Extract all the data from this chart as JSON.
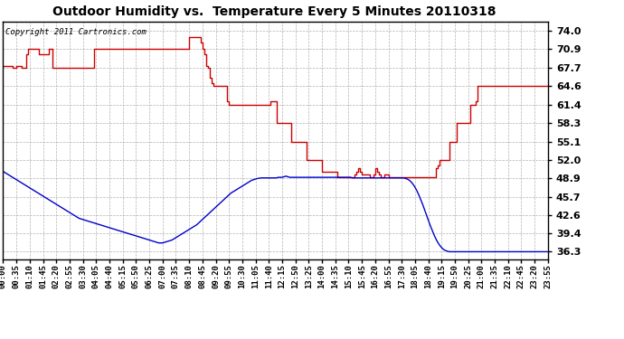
{
  "title": "Outdoor Humidity vs.  Temperature Every 5 Minutes 20110318",
  "copyright_text": "Copyright 2011 Cartronics.com",
  "background_color": "#ffffff",
  "plot_bg_color": "#ffffff",
  "grid_color": "#aaaaaa",
  "line_color_humidity": "#cc0000",
  "line_color_temp": "#0000cc",
  "ylim": [
    35.0,
    75.5
  ],
  "yticks": [
    36.3,
    39.4,
    42.6,
    45.7,
    48.9,
    52.0,
    55.1,
    58.3,
    61.4,
    64.6,
    67.7,
    70.9,
    74.0
  ],
  "humidity_data": [
    68.0,
    68.0,
    68.0,
    68.0,
    68.0,
    67.7,
    67.7,
    68.0,
    68.0,
    68.0,
    67.7,
    67.7,
    70.0,
    70.9,
    70.9,
    70.9,
    70.9,
    70.9,
    70.9,
    70.0,
    70.0,
    70.0,
    70.0,
    70.0,
    70.9,
    70.9,
    67.7,
    67.7,
    67.7,
    67.7,
    67.7,
    67.7,
    67.7,
    67.7,
    67.7,
    67.7,
    67.7,
    67.7,
    67.7,
    67.7,
    67.7,
    67.7,
    67.7,
    67.7,
    67.7,
    67.7,
    67.7,
    67.7,
    70.9,
    70.9,
    70.9,
    70.9,
    70.9,
    70.9,
    70.9,
    70.9,
    70.9,
    70.9,
    70.9,
    70.9,
    70.9,
    70.9,
    70.9,
    70.9,
    70.9,
    70.9,
    70.9,
    70.9,
    70.9,
    70.9,
    70.9,
    70.9,
    70.9,
    70.9,
    70.9,
    70.9,
    70.9,
    70.9,
    70.9,
    70.9,
    70.9,
    70.9,
    70.9,
    70.9,
    70.9,
    70.9,
    70.9,
    70.9,
    70.9,
    70.9,
    70.9,
    70.9,
    70.9,
    70.9,
    70.9,
    70.9,
    70.9,
    70.9,
    73.0,
    73.0,
    73.0,
    73.0,
    73.0,
    73.0,
    72.0,
    71.0,
    70.0,
    68.0,
    67.7,
    66.0,
    65.0,
    64.6,
    64.6,
    64.6,
    64.6,
    64.6,
    64.6,
    64.6,
    62.0,
    61.4,
    61.4,
    61.4,
    61.4,
    61.4,
    61.4,
    61.4,
    61.4,
    61.4,
    61.4,
    61.4,
    61.4,
    61.4,
    61.4,
    61.4,
    61.4,
    61.4,
    61.4,
    61.4,
    61.4,
    61.4,
    61.4,
    62.0,
    62.0,
    62.0,
    58.3,
    58.3,
    58.3,
    58.3,
    58.3,
    58.3,
    58.3,
    58.3,
    55.1,
    55.1,
    55.1,
    55.1,
    55.1,
    55.1,
    55.1,
    55.1,
    52.0,
    52.0,
    52.0,
    52.0,
    52.0,
    52.0,
    52.0,
    52.0,
    50.0,
    50.0,
    50.0,
    50.0,
    50.0,
    50.0,
    50.0,
    50.0,
    49.0,
    49.0,
    49.0,
    49.0,
    49.0,
    49.0,
    49.0,
    49.0,
    49.0,
    49.5,
    50.0,
    50.5,
    50.0,
    49.5,
    49.5,
    49.5,
    49.5,
    49.0,
    49.0,
    49.5,
    50.5,
    50.0,
    49.5,
    49.0,
    49.0,
    49.5,
    49.5,
    49.0,
    49.0,
    49.0,
    49.0,
    49.0,
    49.0,
    49.0,
    49.0,
    49.0,
    49.0,
    49.0,
    49.0,
    49.0,
    49.0,
    49.0,
    49.0,
    49.0,
    49.0,
    49.0,
    49.0,
    49.0,
    49.0,
    49.0,
    49.0,
    49.0,
    50.5,
    51.0,
    52.0,
    52.0,
    52.0,
    52.0,
    52.0,
    55.1,
    55.1,
    55.1,
    55.1,
    58.3,
    58.3,
    58.3,
    58.3,
    58.3,
    58.3,
    58.3,
    61.4,
    61.4,
    61.4,
    62.0,
    64.6,
    64.6,
    64.6,
    64.6,
    64.6,
    64.6,
    64.6,
    64.6,
    64.6,
    64.6,
    64.6,
    64.6,
    64.6,
    64.6,
    64.6,
    64.6,
    64.6,
    64.6,
    64.6,
    64.6,
    64.6,
    64.6,
    64.6,
    64.6,
    64.6,
    64.6,
    64.6,
    64.6,
    64.6,
    64.6,
    64.6,
    64.6,
    64.6,
    64.6,
    64.6,
    64.6,
    64.6,
    64.6
  ],
  "temp_data": [
    50.0,
    49.8,
    49.6,
    49.4,
    49.2,
    49.0,
    48.8,
    48.6,
    48.4,
    48.2,
    48.0,
    47.8,
    47.6,
    47.4,
    47.2,
    47.0,
    46.8,
    46.6,
    46.4,
    46.2,
    46.0,
    45.8,
    45.6,
    45.4,
    45.2,
    45.0,
    44.8,
    44.6,
    44.4,
    44.2,
    44.0,
    43.8,
    43.6,
    43.4,
    43.2,
    43.0,
    42.8,
    42.6,
    42.4,
    42.2,
    42.0,
    41.9,
    41.8,
    41.7,
    41.6,
    41.5,
    41.4,
    41.3,
    41.2,
    41.1,
    41.0,
    40.9,
    40.8,
    40.7,
    40.6,
    40.5,
    40.4,
    40.3,
    40.2,
    40.1,
    40.0,
    39.9,
    39.8,
    39.7,
    39.6,
    39.5,
    39.4,
    39.3,
    39.2,
    39.1,
    39.0,
    38.9,
    38.8,
    38.7,
    38.6,
    38.5,
    38.4,
    38.3,
    38.2,
    38.1,
    38.0,
    37.9,
    37.8,
    37.8,
    37.8,
    37.9,
    38.0,
    38.1,
    38.2,
    38.3,
    38.5,
    38.7,
    38.9,
    39.1,
    39.3,
    39.5,
    39.7,
    39.9,
    40.1,
    40.3,
    40.5,
    40.7,
    40.9,
    41.2,
    41.5,
    41.8,
    42.1,
    42.4,
    42.7,
    43.0,
    43.3,
    43.6,
    43.9,
    44.2,
    44.5,
    44.8,
    45.1,
    45.4,
    45.7,
    46.0,
    46.3,
    46.5,
    46.7,
    46.9,
    47.1,
    47.3,
    47.5,
    47.7,
    47.9,
    48.1,
    48.3,
    48.5,
    48.6,
    48.7,
    48.8,
    48.85,
    48.9,
    48.9,
    48.9,
    48.9,
    48.9,
    48.9,
    48.9,
    48.9,
    48.9,
    49.0,
    49.0,
    49.0,
    49.1,
    49.2,
    49.1,
    49.0,
    49.0,
    49.0,
    49.0,
    49.0,
    49.0,
    49.0,
    49.0,
    49.0,
    49.0,
    49.0,
    49.0,
    49.0,
    49.0,
    49.0,
    49.0,
    49.0,
    49.0,
    49.0,
    49.0,
    49.0,
    49.0,
    49.0,
    49.0,
    49.0,
    49.0,
    49.0,
    49.0,
    49.0,
    49.0,
    49.0,
    49.0,
    49.0,
    48.9,
    48.9,
    48.9,
    48.9,
    48.9,
    48.9,
    48.9,
    48.9,
    48.9,
    48.9,
    48.9,
    48.9,
    48.9,
    48.9,
    48.9,
    48.9,
    48.9,
    48.9,
    48.9,
    48.9,
    48.9,
    48.9,
    48.9,
    48.9,
    48.9,
    48.9,
    48.9,
    48.9,
    48.8,
    48.7,
    48.5,
    48.2,
    47.8,
    47.3,
    46.7,
    46.0,
    45.2,
    44.4,
    43.5,
    42.6,
    41.7,
    40.8,
    40.0,
    39.2,
    38.5,
    37.9,
    37.4,
    37.0,
    36.7,
    36.5,
    36.4,
    36.3,
    36.3,
    36.3,
    36.3,
    36.3,
    36.3,
    36.3,
    36.3,
    36.3,
    36.3,
    36.3,
    36.3,
    36.3,
    36.3,
    36.3,
    36.3,
    36.3,
    36.3,
    36.3,
    36.3,
    36.3,
    36.3,
    36.3,
    36.3,
    36.3,
    36.3,
    36.3,
    36.3,
    36.3,
    36.3,
    36.3,
    36.3,
    36.3,
    36.3,
    36.3,
    36.3,
    36.3,
    36.3,
    36.3,
    36.3,
    36.3,
    36.3,
    36.3,
    36.3,
    36.3,
    36.3,
    36.3,
    36.3,
    36.3,
    36.3,
    36.3,
    36.3,
    36.3
  ]
}
